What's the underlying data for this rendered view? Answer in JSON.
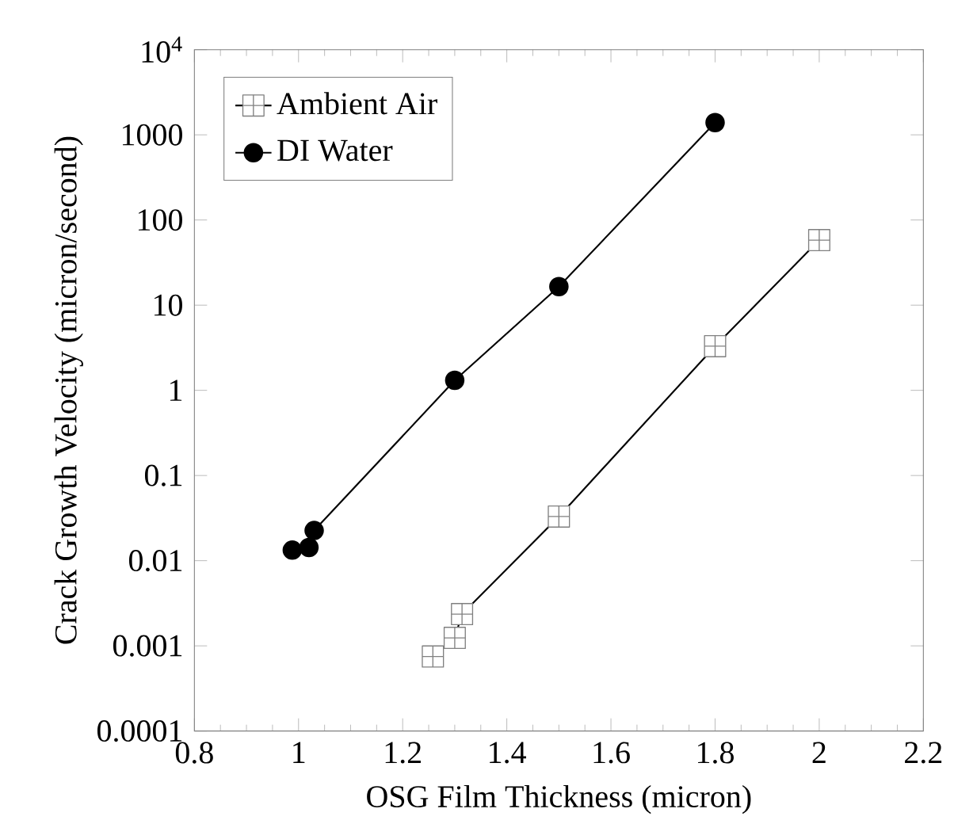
{
  "chart_data": {
    "type": "line",
    "xlabel": "OSG Film Thickness (micron)",
    "ylabel": "Crack Growth Velocity (micron/second)",
    "log": "y",
    "grid": false,
    "legend": "top left",
    "line_style": "solid",
    "xlim": [
      0.8,
      2.2
    ],
    "xticks": [
      0.8,
      1,
      1.2,
      1.4,
      1.6,
      1.8,
      2,
      2.2
    ],
    "ylim": [
      0.0001,
      10000
    ],
    "yticks": [
      0.0001,
      0.001,
      0.01,
      0.1,
      1,
      10,
      100,
      1000,
      {
        "value": 10000,
        "label": "10$^{4}$"
      }
    ],
    "series": [
      {
        "name": "Ambient Air",
        "color": "#000000",
        "marker": "square",
        "x": [
          1.258,
          1.3,
          1.314,
          1.5,
          1.8,
          2.0
        ],
        "values": [
          0.00075,
          0.00124,
          0.00236,
          0.033,
          3.3,
          58
        ]
      },
      {
        "name": "DI Water",
        "color": "#000000",
        "marker": "circle",
        "x": [
          0.988,
          1.02,
          1.03,
          1.3,
          1.5,
          1.8
        ],
        "values": [
          0.0133,
          0.0143,
          0.0226,
          1.31,
          16.5,
          1390
        ]
      }
    ]
  }
}
